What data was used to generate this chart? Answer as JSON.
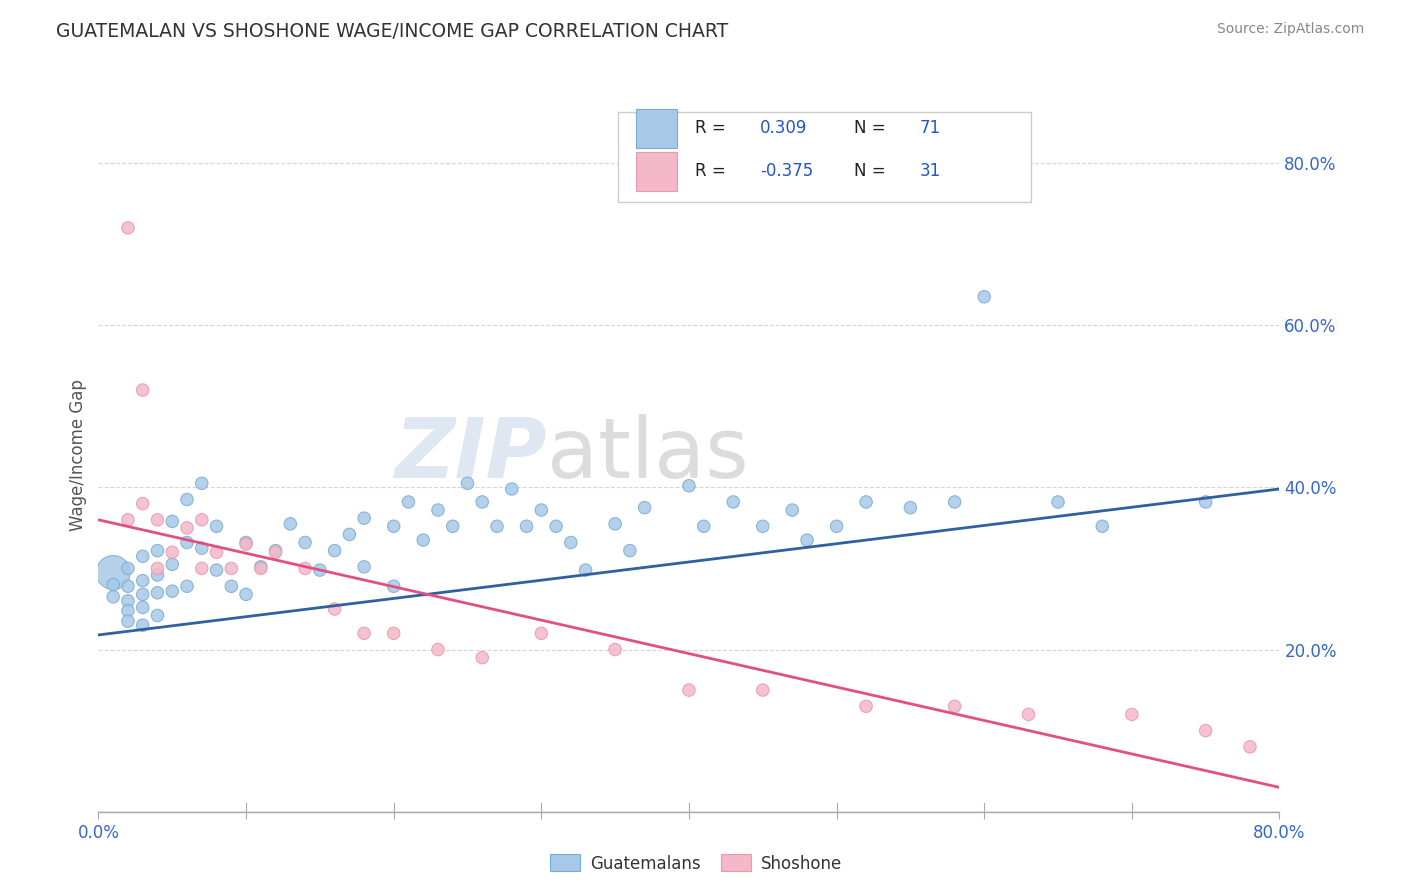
{
  "title": "GUATEMALAN VS SHOSHONE WAGE/INCOME GAP CORRELATION CHART",
  "source": "Source: ZipAtlas.com",
  "ylabel": "Wage/Income Gap",
  "ylabel_right_ticks": [
    "20.0%",
    "40.0%",
    "60.0%",
    "80.0%"
  ],
  "ylabel_right_vals": [
    0.2,
    0.4,
    0.6,
    0.8
  ],
  "blue_color": "#a8c8e8",
  "pink_color": "#f4b8c8",
  "blue_edge_color": "#7aaed0",
  "pink_edge_color": "#e898b0",
  "blue_line_color": "#3060a0",
  "pink_line_color": "#e05080",
  "watermark_zip_color": "#c8d8e8",
  "watermark_atlas_color": "#c8c8c8",
  "blue_scatter_x": [
    0.01,
    0.01,
    0.01,
    0.02,
    0.02,
    0.02,
    0.02,
    0.02,
    0.03,
    0.03,
    0.03,
    0.03,
    0.03,
    0.04,
    0.04,
    0.04,
    0.04,
    0.05,
    0.05,
    0.05,
    0.06,
    0.06,
    0.06,
    0.07,
    0.07,
    0.08,
    0.08,
    0.09,
    0.1,
    0.1,
    0.11,
    0.12,
    0.13,
    0.14,
    0.15,
    0.16,
    0.17,
    0.18,
    0.18,
    0.2,
    0.2,
    0.21,
    0.22,
    0.23,
    0.24,
    0.25,
    0.26,
    0.27,
    0.28,
    0.29,
    0.3,
    0.31,
    0.32,
    0.33,
    0.35,
    0.36,
    0.37,
    0.4,
    0.41,
    0.43,
    0.45,
    0.47,
    0.48,
    0.5,
    0.52,
    0.55,
    0.58,
    0.6,
    0.65,
    0.68,
    0.75
  ],
  "blue_scatter_y": [
    0.295,
    0.28,
    0.265,
    0.3,
    0.278,
    0.26,
    0.248,
    0.235,
    0.315,
    0.285,
    0.268,
    0.252,
    0.23,
    0.322,
    0.292,
    0.27,
    0.242,
    0.358,
    0.305,
    0.272,
    0.385,
    0.332,
    0.278,
    0.405,
    0.325,
    0.352,
    0.298,
    0.278,
    0.332,
    0.268,
    0.302,
    0.322,
    0.355,
    0.332,
    0.298,
    0.322,
    0.342,
    0.362,
    0.302,
    0.352,
    0.278,
    0.382,
    0.335,
    0.372,
    0.352,
    0.405,
    0.382,
    0.352,
    0.398,
    0.352,
    0.372,
    0.352,
    0.332,
    0.298,
    0.355,
    0.322,
    0.375,
    0.402,
    0.352,
    0.382,
    0.352,
    0.372,
    0.335,
    0.352,
    0.382,
    0.375,
    0.382,
    0.635,
    0.382,
    0.352,
    0.382
  ],
  "blue_scatter_size": [
    600,
    80,
    80,
    80,
    80,
    80,
    80,
    80,
    80,
    80,
    80,
    80,
    80,
    80,
    80,
    80,
    80,
    80,
    80,
    80,
    80,
    80,
    80,
    80,
    80,
    80,
    80,
    80,
    80,
    80,
    80,
    80,
    80,
    80,
    80,
    80,
    80,
    80,
    80,
    80,
    80,
    80,
    80,
    80,
    80,
    80,
    80,
    80,
    80,
    80,
    80,
    80,
    80,
    80,
    80,
    80,
    80,
    80,
    80,
    80,
    80,
    80,
    80,
    80,
    80,
    80,
    80,
    80,
    80,
    80,
    80
  ],
  "pink_scatter_x": [
    0.02,
    0.03,
    0.03,
    0.04,
    0.04,
    0.05,
    0.06,
    0.07,
    0.07,
    0.08,
    0.09,
    0.1,
    0.11,
    0.12,
    0.14,
    0.16,
    0.18,
    0.2,
    0.23,
    0.26,
    0.3,
    0.35,
    0.4,
    0.45,
    0.52,
    0.58,
    0.63,
    0.7,
    0.75,
    0.78,
    0.02
  ],
  "pink_scatter_y": [
    0.72,
    0.52,
    0.38,
    0.36,
    0.3,
    0.32,
    0.35,
    0.36,
    0.3,
    0.32,
    0.3,
    0.33,
    0.3,
    0.32,
    0.3,
    0.25,
    0.22,
    0.22,
    0.2,
    0.19,
    0.22,
    0.2,
    0.15,
    0.15,
    0.13,
    0.13,
    0.12,
    0.12,
    0.1,
    0.08,
    0.36
  ],
  "pink_scatter_size": [
    80,
    80,
    80,
    80,
    80,
    80,
    80,
    80,
    80,
    80,
    80,
    80,
    80,
    80,
    80,
    80,
    80,
    80,
    80,
    80,
    80,
    80,
    80,
    80,
    80,
    80,
    80,
    80,
    80,
    80,
    80
  ],
  "blue_line_x": [
    0.0,
    0.8
  ],
  "blue_line_y": [
    0.218,
    0.398
  ],
  "pink_line_x": [
    0.0,
    0.8
  ],
  "pink_line_y": [
    0.36,
    0.03
  ],
  "xlim": [
    0.0,
    0.8
  ],
  "ylim": [
    0.0,
    0.88
  ],
  "xtick_positions": [
    0.0,
    0.1,
    0.2,
    0.3,
    0.4,
    0.5,
    0.6,
    0.7,
    0.8
  ],
  "xtick_labels": [
    "0.0%",
    "",
    "",
    "",
    "",
    "",
    "",
    "",
    "80.0%"
  ]
}
